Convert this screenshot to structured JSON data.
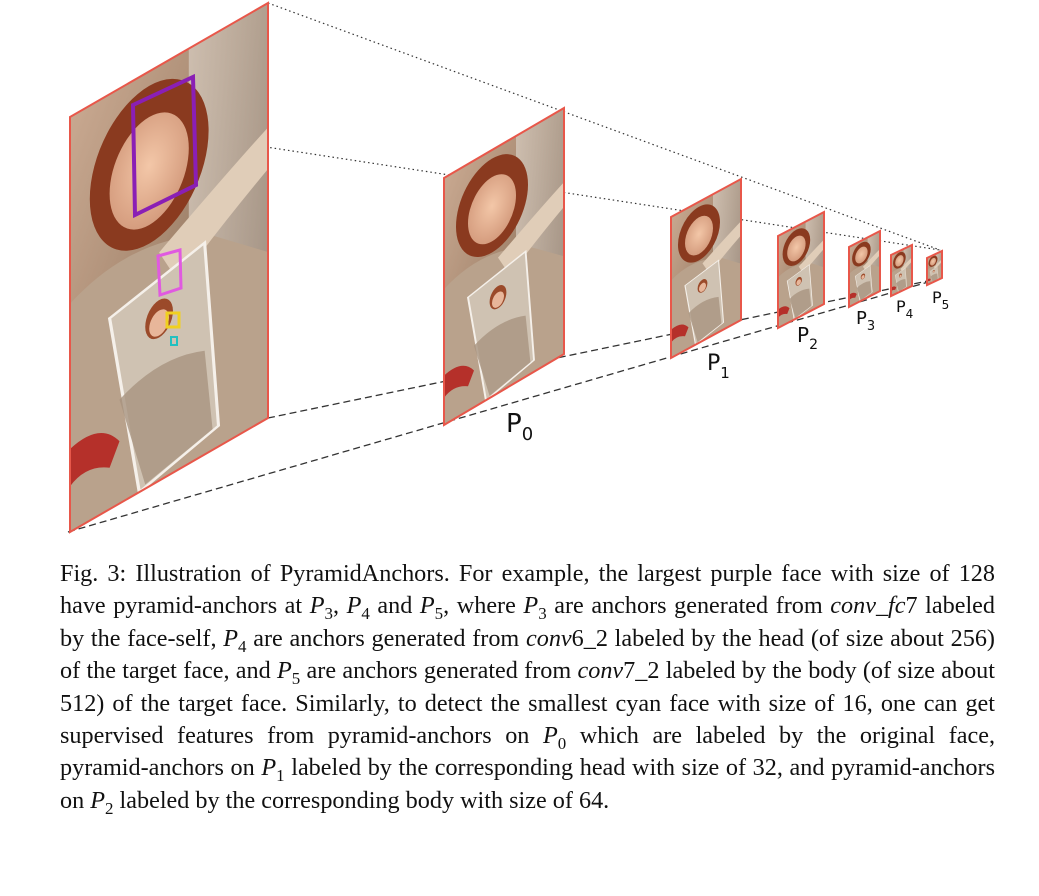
{
  "figure": {
    "pyramid_levels": [
      {
        "name": "P",
        "sub": "0"
      },
      {
        "name": "P",
        "sub": "1"
      },
      {
        "name": "P",
        "sub": "2"
      },
      {
        "name": "P",
        "sub": "3"
      },
      {
        "name": "P",
        "sub": "4"
      },
      {
        "name": "P",
        "sub": "5"
      }
    ],
    "colors": {
      "frame": "#e8574a",
      "purple_box": "#8a1fb5",
      "magenta_box": "#e05ae0",
      "yellow_box": "#f0d020",
      "cyan_box": "#22c0c0"
    }
  },
  "caption": {
    "fig_label": "Fig. 3:",
    "t1": " Illustration of PyramidAnchors. For example, the largest purple face with size of 128 have pyramid-anchors at ",
    "t2": ", ",
    "t3": " and ",
    "t4": ", where ",
    "t5": " are anchors generated from ",
    "conv_fc7": "conv_fc",
    "conv_fc7_num": "7",
    "t6": " labeled by the face-self, ",
    "t7": " are anchors generated from ",
    "conv6": "conv",
    "conv6_num": "6_2",
    "t8": " labeled by the head (of size about 256) of the target face, and ",
    "t9": " are anchors generated from ",
    "conv7": "conv",
    "conv7_num": "7_2",
    "t10": " labeled by the body (of size about 512) of the target face. Similarly, to detect the smallest cyan face with size of 16, one can get supervised features from pyramid-anchors on ",
    "t11": " which are labeled by the original face, pyramid-anchors on ",
    "t12": " labeled by the corresponding head with size of 32, and pyramid-anchors on ",
    "t13": " labeled by the corresponding body with size of 64.",
    "P": "P",
    "s0": "0",
    "s1": "1",
    "s2": "2",
    "s3": "3",
    "s4": "4",
    "s5": "5"
  }
}
